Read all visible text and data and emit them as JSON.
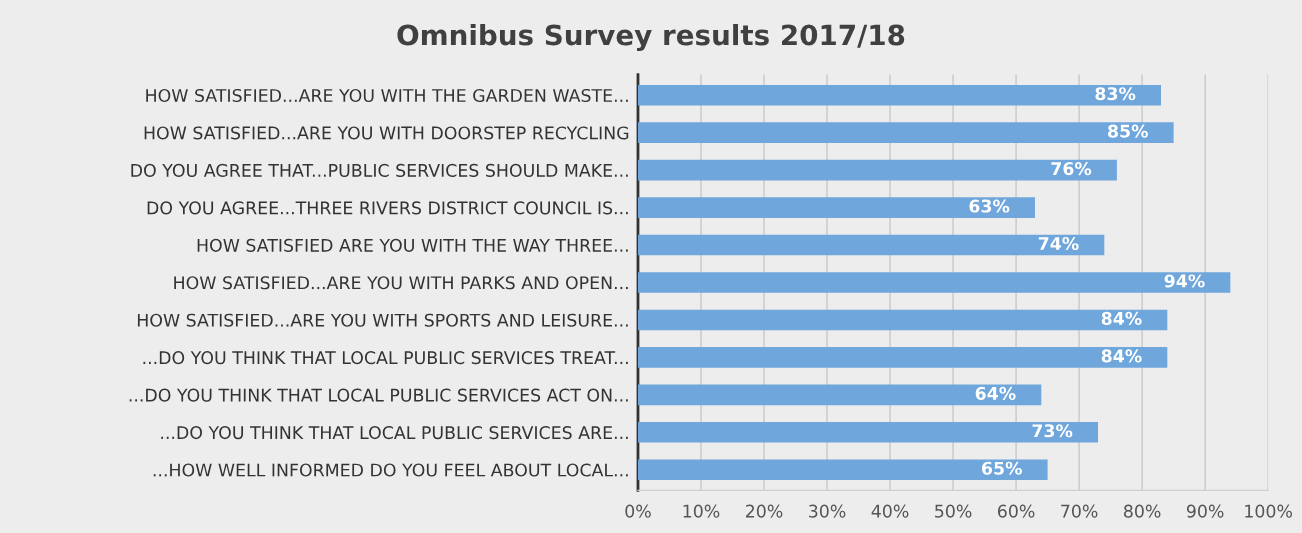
{
  "chart_data": {
    "type": "bar",
    "orientation": "horizontal",
    "title": "Omnibus Survey results 2017/18",
    "categories": [
      "HOW SATISFIED...ARE YOU WITH THE GARDEN WASTE...",
      "HOW SATISFIED...ARE YOU WITH DOORSTEP RECYCLING",
      "DO YOU AGREE THAT...PUBLIC SERVICES SHOULD MAKE...",
      "DO YOU AGREE...THREE RIVERS DISTRICT COUNCIL IS...",
      "HOW SATISFIED ARE YOU WITH THE WAY THREE...",
      "HOW SATISFIED...ARE YOU WITH PARKS AND OPEN...",
      "HOW SATISFIED...ARE YOU WITH SPORTS AND LEISURE...",
      "...DO YOU THINK THAT LOCAL PUBLIC SERVICES TREAT...",
      "...DO YOU THINK THAT LOCAL PUBLIC SERVICES ACT ON...",
      "...DO YOU THINK THAT LOCAL PUBLIC SERVICES ARE...",
      "...HOW WELL INFORMED DO YOU FEEL ABOUT LOCAL..."
    ],
    "values": [
      83,
      85,
      76,
      63,
      74,
      94,
      84,
      84,
      64,
      73,
      65
    ],
    "value_labels": [
      "83%",
      "85%",
      "76%",
      "63%",
      "74%",
      "94%",
      "84%",
      "84%",
      "64%",
      "73%",
      "65%"
    ],
    "color": "#6fa6dc",
    "xlim": [
      0,
      100
    ],
    "xticks": [
      {
        "value": 0,
        "label": "0%"
      },
      {
        "value": 10,
        "label": "10%"
      },
      {
        "value": 20,
        "label": "20%"
      },
      {
        "value": 30,
        "label": "30%"
      },
      {
        "value": 40,
        "label": "40%"
      },
      {
        "value": 50,
        "label": "50%"
      },
      {
        "value": 60,
        "label": "60%"
      },
      {
        "value": 70,
        "label": "70%"
      },
      {
        "value": 80,
        "label": "80%"
      },
      {
        "value": 90,
        "label": "90%"
      },
      {
        "value": 100,
        "label": "100%"
      }
    ],
    "grid": "x",
    "legend": false
  }
}
